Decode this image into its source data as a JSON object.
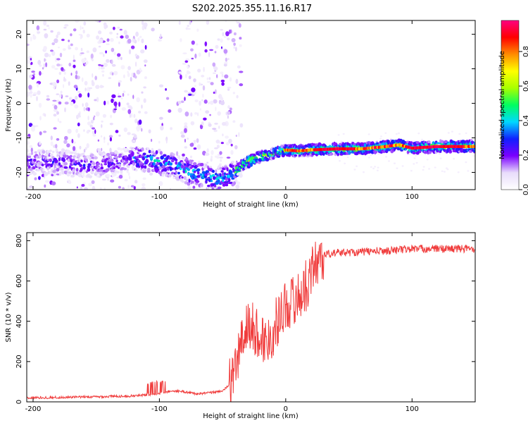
{
  "title": "S202.2025.355.11.16.R17",
  "chart_data": [
    {
      "type": "heatmap",
      "name": "spectrogram",
      "xlabel": "Height of straight line (km)",
      "ylabel": "Frequency (Hz)",
      "xlim": [
        -205,
        150
      ],
      "ylim": [
        -25,
        24
      ],
      "xticks": [
        -200,
        -100,
        0,
        100
      ],
      "yticks": [
        -20,
        -10,
        0,
        10,
        20
      ],
      "colorbar": {
        "label": "Normalized spectral amplitude",
        "range": [
          0.0,
          0.98
        ],
        "ticks": [
          0.0,
          0.2,
          0.4,
          0.6,
          0.8
        ],
        "tick_labels": [
          "0.0",
          "0.2",
          "0.4",
          "0.6",
          "0.8"
        ],
        "colors": [
          "#ffffff",
          "#e8dcfb",
          "#7a00ff",
          "#1020ff",
          "#00d8ff",
          "#00ff60",
          "#a8ff00",
          "#ffff00",
          "#ff8c00",
          "#ff0000",
          "#ff0080"
        ]
      },
      "ridge": {
        "x": [
          -200,
          -180,
          -160,
          -140,
          -120,
          -105,
          -90,
          -80,
          -70,
          -60,
          -50,
          -40,
          -35,
          -30,
          -20,
          -10,
          0,
          10,
          20,
          40,
          60,
          80,
          90,
          100,
          120,
          150
        ],
        "y": [
          -17,
          -17,
          -18,
          -17.5,
          -16,
          -16.5,
          -18,
          -19.5,
          -20.5,
          -21.5,
          -22,
          -20,
          -18,
          -17,
          -15.5,
          -14.5,
          -13.5,
          -13.8,
          -13.5,
          -13.2,
          -13.2,
          -12.5,
          -12,
          -13,
          -12.5,
          -12.5
        ]
      }
    },
    {
      "type": "line",
      "name": "snr",
      "xlabel": "Height of straight line (km)",
      "ylabel": "SNR (10 * v/v)",
      "xlim": [
        -205,
        150
      ],
      "ylim": [
        0,
        840
      ],
      "xticks": [
        -200,
        -100,
        0,
        100
      ],
      "yticks": [
        0,
        200,
        400,
        600,
        800
      ],
      "color": "#f03c3c",
      "series": [
        {
          "name": "SNR",
          "x": [
            -205,
            -180,
            -150,
            -120,
            -100,
            -90,
            -80,
            -70,
            -60,
            -50,
            -45,
            -40,
            -35,
            -30,
            -25,
            -20,
            -15,
            -10,
            -5,
            0,
            5,
            10,
            15,
            20,
            25,
            30,
            40,
            60,
            80,
            100,
            120,
            150
          ],
          "y": [
            20,
            22,
            25,
            30,
            40,
            55,
            50,
            40,
            45,
            55,
            80,
            160,
            300,
            380,
            360,
            320,
            300,
            350,
            430,
            480,
            500,
            520,
            560,
            640,
            700,
            730,
            740,
            745,
            750,
            760,
            760,
            760
          ]
        }
      ]
    }
  ]
}
